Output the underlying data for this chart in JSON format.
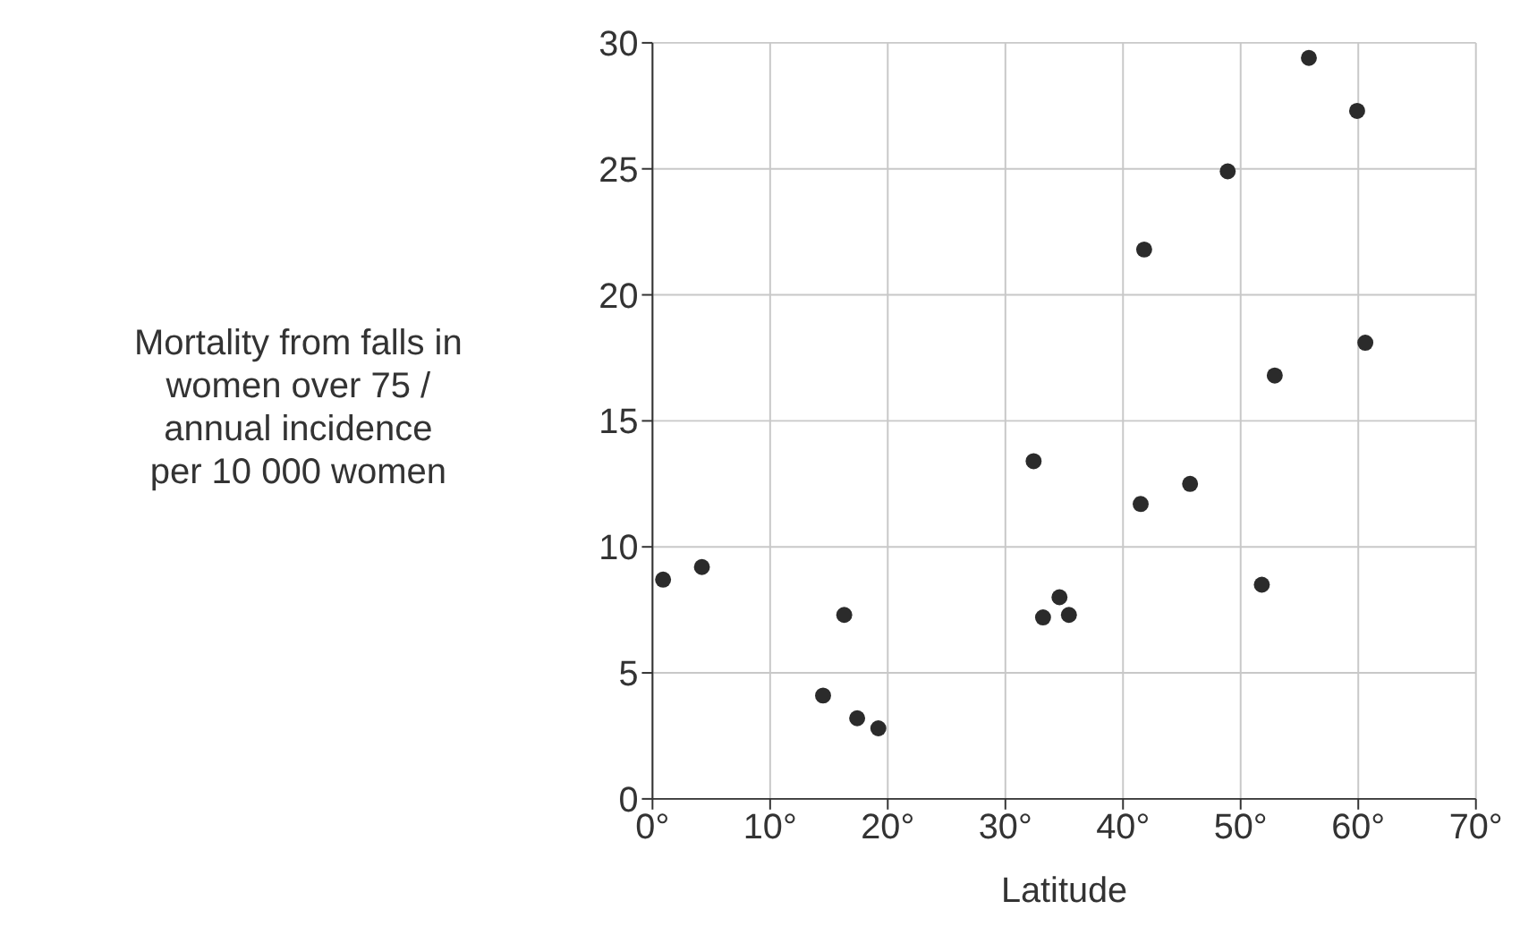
{
  "chart_data": {
    "type": "scatter",
    "xlabel": "Latitude",
    "ylabel": "Mortality from falls in\nwomen over 75 /\nannual incidence\nper 10 000 women",
    "x": [
      0.9,
      4.2,
      16.3,
      14.5,
      17.4,
      19.2,
      32.4,
      55.8,
      59.9,
      48.9,
      41.8,
      60.6,
      52.9,
      45.7,
      41.5,
      51.8,
      34.6,
      33.2,
      35.4
    ],
    "values": [
      8.7,
      9.2,
      7.3,
      4.1,
      3.2,
      2.8,
      13.4,
      29.4,
      27.3,
      24.9,
      21.8,
      18.1,
      16.8,
      12.5,
      11.7,
      8.5,
      8.0,
      7.2,
      7.3
    ],
    "color": "#2b2b2b",
    "marker": "circle",
    "grid": true,
    "xlim": [
      0,
      70
    ],
    "xticks": [
      {
        "value": 0,
        "label": "0°"
      },
      {
        "value": 10,
        "label": "10°"
      },
      {
        "value": 20,
        "label": "20°"
      },
      {
        "value": 30,
        "label": "30°"
      },
      {
        "value": 40,
        "label": "40°"
      },
      {
        "value": 50,
        "label": "50°"
      },
      {
        "value": 60,
        "label": "60°"
      },
      {
        "value": 70,
        "label": "70°"
      }
    ],
    "ylim": [
      0,
      30
    ],
    "yticks": [
      0,
      5,
      10,
      15,
      20,
      25,
      30
    ]
  }
}
